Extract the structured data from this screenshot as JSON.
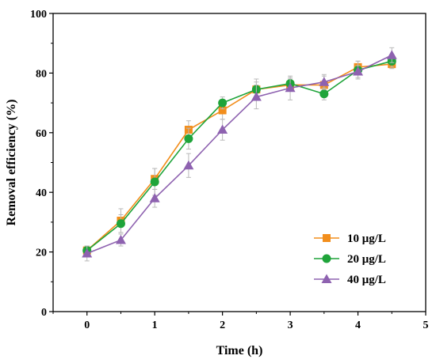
{
  "chart_data": {
    "type": "line",
    "xlabel": "Time (h)",
    "ylabel": "Removal efficiency (%)",
    "xlim": [
      -0.5,
      5
    ],
    "ylim": [
      0,
      100
    ],
    "xticks": [
      0,
      1,
      2,
      3,
      4,
      5
    ],
    "yticks": [
      0,
      20,
      40,
      60,
      80,
      100
    ],
    "x": [
      0,
      0.5,
      1,
      1.5,
      2,
      2.5,
      3,
      3.5,
      4,
      4.5
    ],
    "grid": false,
    "legend_position": "bottom-right",
    "series": [
      {
        "name": "10 μg/L",
        "color": "#f28e1c",
        "marker": "square",
        "values": [
          20.5,
          30.5,
          44.5,
          61,
          67.5,
          74.5,
          76,
          76,
          82,
          83
        ],
        "errors": [
          1.5,
          4,
          3.5,
          3,
          3,
          2.5,
          2,
          3,
          2,
          1.5
        ]
      },
      {
        "name": "20 μg/L",
        "color": "#1fa43a",
        "marker": "circle",
        "values": [
          20.5,
          29.5,
          43.5,
          58,
          70,
          74.5,
          76.5,
          73,
          81,
          84
        ],
        "errors": [
          1.5,
          3,
          4.5,
          3.5,
          2,
          3.5,
          2,
          2,
          3,
          2
        ]
      },
      {
        "name": "40 μg/L",
        "color": "#8e62b0",
        "marker": "triangle",
        "values": [
          19.5,
          24,
          38,
          49,
          61,
          72,
          75,
          77,
          80.5,
          86
        ],
        "errors": [
          2.5,
          2,
          3,
          4,
          3.5,
          4,
          4,
          2.5,
          2,
          2.5
        ]
      }
    ]
  }
}
